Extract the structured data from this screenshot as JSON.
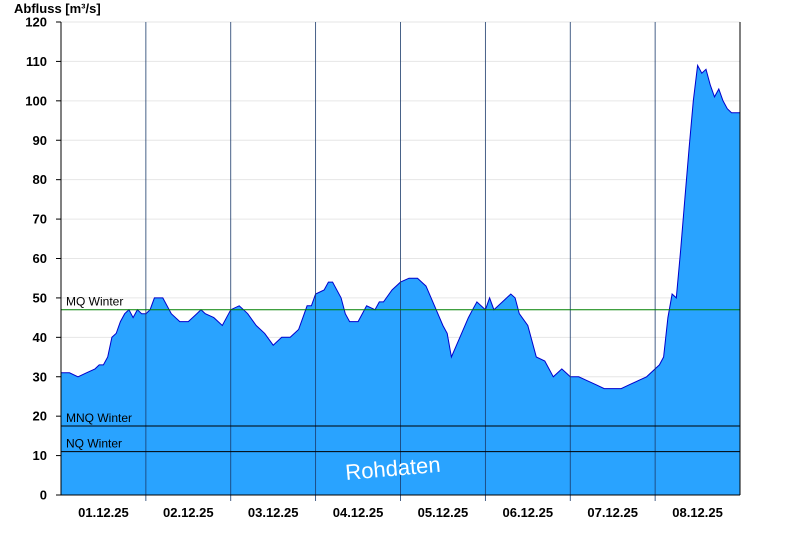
{
  "chart_data": {
    "type": "area",
    "ylabel": "Abfluss [m³/s]",
    "ylim": [
      0,
      120
    ],
    "yticks": [
      0,
      10,
      20,
      30,
      40,
      50,
      60,
      70,
      80,
      90,
      100,
      110,
      120
    ],
    "xlim": [
      0,
      8
    ],
    "day_boundaries": [
      1,
      2,
      3,
      4,
      5,
      6,
      7
    ],
    "xticks": [
      {
        "pos": 0.5,
        "label": "01.12.25"
      },
      {
        "pos": 1.5,
        "label": "02.12.25"
      },
      {
        "pos": 2.5,
        "label": "03.12.25"
      },
      {
        "pos": 3.5,
        "label": "04.12.25"
      },
      {
        "pos": 4.5,
        "label": "05.12.25"
      },
      {
        "pos": 5.5,
        "label": "06.12.25"
      },
      {
        "pos": 6.5,
        "label": "07.12.25"
      },
      {
        "pos": 7.5,
        "label": "08.12.25"
      }
    ],
    "grid": true,
    "fill_color": "#29a3ff",
    "line_color": "#0000cc",
    "reference_lines": [
      {
        "label": "MQ Winter",
        "value": 47,
        "color": "#008000"
      },
      {
        "label": "MNQ Winter",
        "value": 17.5,
        "color": "#000000"
      },
      {
        "label": "NQ Winter",
        "value": 11,
        "color": "#000000"
      }
    ],
    "watermark": "Rohdaten",
    "series": [
      {
        "x": [
          0,
          0.1,
          0.2,
          0.3,
          0.4,
          0.45,
          0.5,
          0.55,
          0.6,
          0.65,
          0.7,
          0.75,
          0.8,
          0.85,
          0.9,
          0.95,
          1.0,
          1.05,
          1.1,
          1.15,
          1.2,
          1.3,
          1.4,
          1.5,
          1.6,
          1.65,
          1.7,
          1.8,
          1.9,
          2.0,
          2.1,
          2.15,
          2.2,
          2.3,
          2.4,
          2.5,
          2.6,
          2.7,
          2.8,
          2.85,
          2.9,
          2.95,
          3.0,
          3.1,
          3.15,
          3.2,
          3.3,
          3.35,
          3.4,
          3.5,
          3.6,
          3.7,
          3.75,
          3.8,
          3.9,
          4.0,
          4.1,
          4.2,
          4.3,
          4.4,
          4.5,
          4.55,
          4.6,
          4.7,
          4.8,
          4.85,
          4.9,
          5.0,
          5.05,
          5.1,
          5.2,
          5.3,
          5.35,
          5.4,
          5.5,
          5.6,
          5.7,
          5.8,
          5.9,
          5.95,
          6.0,
          6.1,
          6.2,
          6.3,
          6.4,
          6.5,
          6.6,
          6.7,
          6.8,
          6.9,
          7.0,
          7.05,
          7.1,
          7.15,
          7.2,
          7.25,
          7.3,
          7.35,
          7.4,
          7.45,
          7.5,
          7.55,
          7.6,
          7.65,
          7.7,
          7.75,
          7.8,
          7.85,
          7.9,
          7.95,
          8.0
        ],
        "y": [
          31,
          31,
          30,
          31,
          32,
          33,
          33,
          35,
          40,
          41,
          44,
          46,
          47,
          45,
          47,
          46,
          46,
          47,
          50,
          50,
          50,
          46,
          44,
          44,
          46,
          47,
          46,
          45,
          43,
          47,
          48,
          47,
          46,
          43,
          41,
          38,
          40,
          40,
          42,
          45,
          48,
          48,
          51,
          52,
          54,
          54,
          50,
          46,
          44,
          44,
          48,
          47,
          49,
          49,
          52,
          54,
          55,
          55,
          53,
          48,
          43,
          41,
          35,
          40,
          45,
          47,
          49,
          47,
          50,
          47,
          49,
          51,
          50,
          46,
          43,
          35,
          34,
          30,
          32,
          31,
          30,
          30,
          29,
          28,
          27,
          27,
          27,
          28,
          29,
          30,
          32,
          33,
          35,
          45,
          51,
          50,
          62,
          75,
          88,
          100,
          109,
          107,
          108,
          104,
          101,
          103,
          100,
          98,
          97,
          97,
          97
        ]
      }
    ]
  }
}
